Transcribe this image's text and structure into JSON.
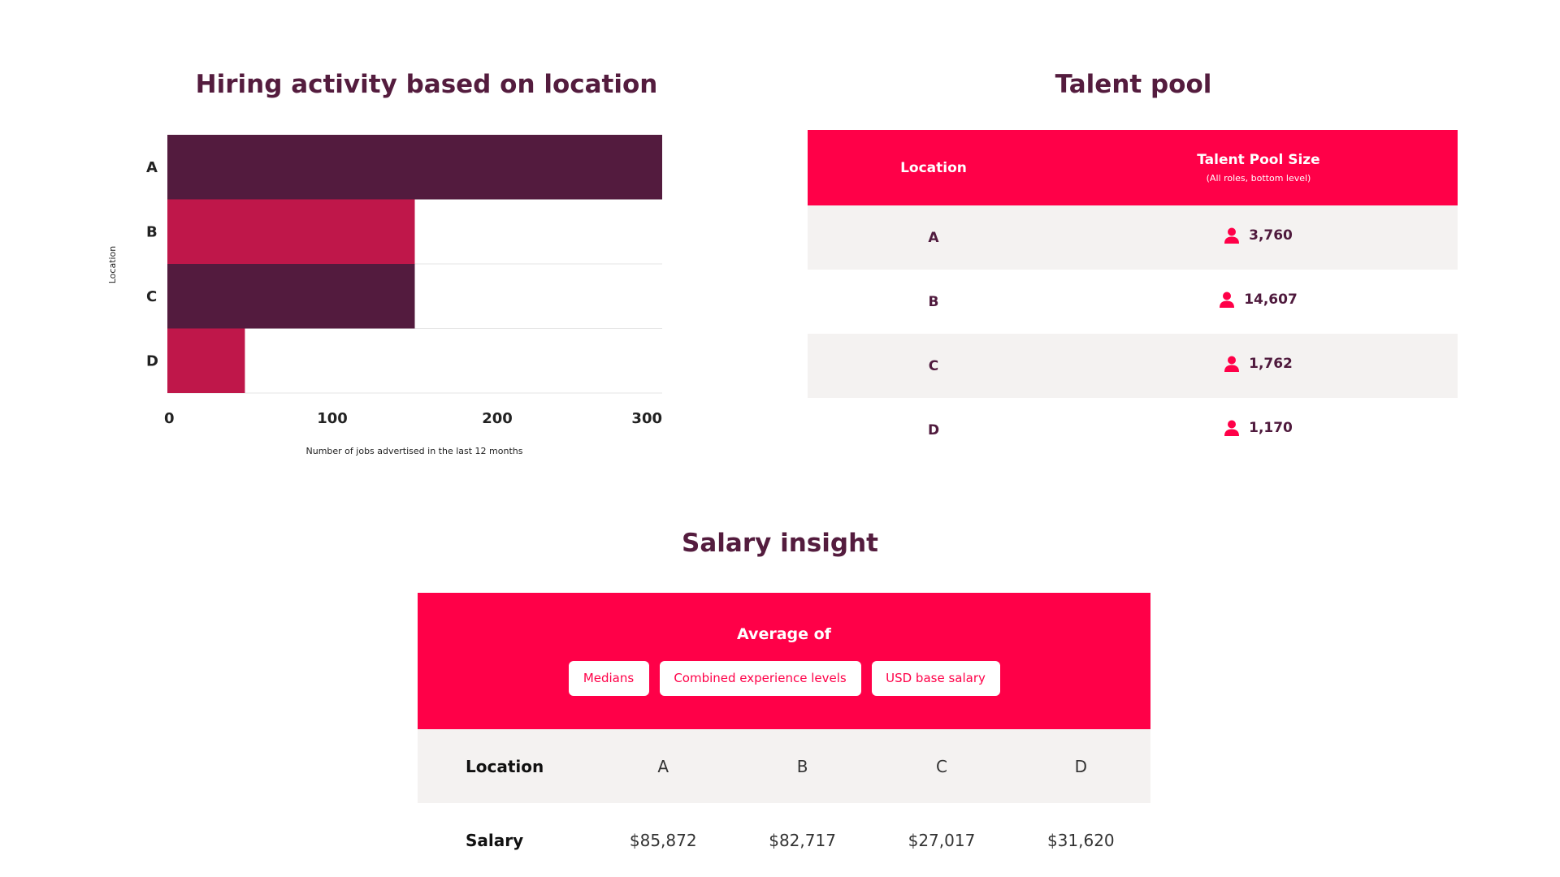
{
  "hiring": {
    "title": "Hiring activity based on location"
  },
  "talent": {
    "title": "Talent pool",
    "header_location": "Location",
    "header_size": "Talent Pool Size",
    "header_size_sub": "(All roles, bottom level)",
    "rows": [
      {
        "location": "A",
        "value": "3,760"
      },
      {
        "location": "B",
        "value": "14,607"
      },
      {
        "location": "C",
        "value": "1,762"
      },
      {
        "location": "D",
        "value": "1,170"
      }
    ],
    "icon": "person-icon",
    "accent": "#ff0048"
  },
  "salary": {
    "title": "Salary insight",
    "average_of": "Average of",
    "pills": [
      "Medians",
      "Combined experience levels",
      "USD base salary"
    ],
    "location_label": "Location",
    "salary_label": "Salary",
    "locations": [
      "A",
      "B",
      "C",
      "D"
    ],
    "values": [
      "$85,872",
      "$82,717",
      "$27,017",
      "$31,620"
    ]
  },
  "colors": {
    "accent": "#ff0048",
    "dark": "#541c3e",
    "bar_dark": "#531b3e",
    "bar_light": "#bf174a",
    "row_shade": "#f4f2f1"
  },
  "chart_data": {
    "type": "bar",
    "orientation": "horizontal",
    "title": "Hiring activity based on location",
    "categories": [
      "A",
      "B",
      "C",
      "D"
    ],
    "values": [
      300,
      150,
      150,
      47
    ],
    "xlabel": "Number of jobs advertised in the last 12 months",
    "ylabel": "Location",
    "xlim": [
      0,
      300
    ],
    "xticks": [
      0,
      100,
      200,
      300
    ],
    "bar_colors": [
      "#531b3e",
      "#bf174a",
      "#531b3e",
      "#bf174a"
    ],
    "grid": true
  }
}
